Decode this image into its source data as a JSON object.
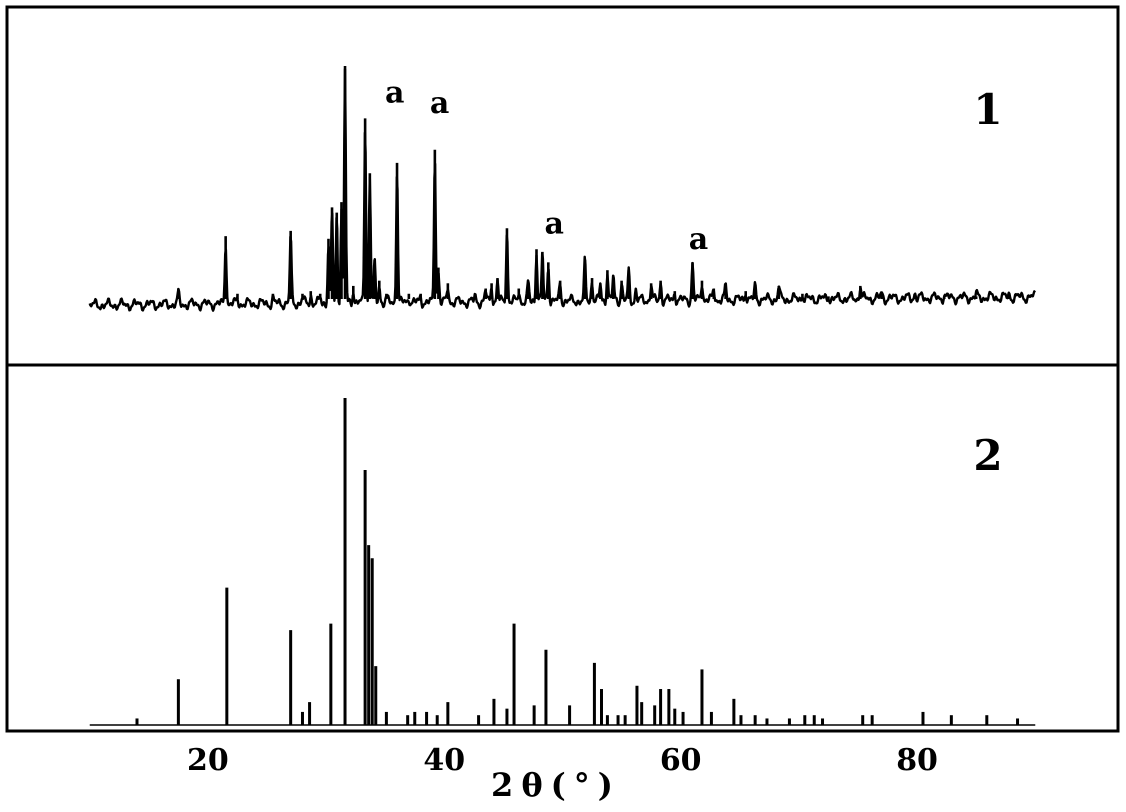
{
  "chart_data": {
    "type": "line",
    "xlabel": "2θ(°)",
    "xlim": [
      3,
      97
    ],
    "xticks": [
      20,
      40,
      60,
      80
    ],
    "grid": false,
    "panels": [
      {
        "label": "1",
        "kind": "measured-pattern",
        "ylim": [
          0,
          100
        ],
        "baseline": 3,
        "peaks": [
          {
            "x": 14.0,
            "y": 3
          },
          {
            "x": 17.5,
            "y": 7
          },
          {
            "x": 21.5,
            "y": 27
          },
          {
            "x": 22.5,
            "y": 5
          },
          {
            "x": 25.5,
            "y": 5
          },
          {
            "x": 27.0,
            "y": 29
          },
          {
            "x": 28.0,
            "y": 5
          },
          {
            "x": 28.7,
            "y": 6
          },
          {
            "x": 29.5,
            "y": 5
          },
          {
            "x": 30.2,
            "y": 26
          },
          {
            "x": 30.5,
            "y": 38
          },
          {
            "x": 30.9,
            "y": 36
          },
          {
            "x": 31.3,
            "y": 40
          },
          {
            "x": 31.6,
            "y": 92
          },
          {
            "x": 32.3,
            "y": 8
          },
          {
            "x": 33.3,
            "y": 72
          },
          {
            "x": 33.7,
            "y": 51
          },
          {
            "x": 34.1,
            "y": 18
          },
          {
            "x": 34.5,
            "y": 10
          },
          {
            "x": 35.1,
            "y": 5
          },
          {
            "x": 36.0,
            "y": 55
          },
          {
            "x": 37.0,
            "y": 5
          },
          {
            "x": 38.0,
            "y": 5
          },
          {
            "x": 39.2,
            "y": 60
          },
          {
            "x": 39.5,
            "y": 15
          },
          {
            "x": 40.3,
            "y": 9
          },
          {
            "x": 42.6,
            "y": 5
          },
          {
            "x": 43.5,
            "y": 7
          },
          {
            "x": 44.0,
            "y": 9
          },
          {
            "x": 44.5,
            "y": 11
          },
          {
            "x": 45.3,
            "y": 30
          },
          {
            "x": 46.3,
            "y": 7
          },
          {
            "x": 47.1,
            "y": 10
          },
          {
            "x": 47.8,
            "y": 22
          },
          {
            "x": 48.3,
            "y": 21
          },
          {
            "x": 48.8,
            "y": 17
          },
          {
            "x": 49.8,
            "y": 10
          },
          {
            "x": 51.9,
            "y": 18
          },
          {
            "x": 52.5,
            "y": 11
          },
          {
            "x": 53.2,
            "y": 9
          },
          {
            "x": 53.8,
            "y": 14
          },
          {
            "x": 54.3,
            "y": 12
          },
          {
            "x": 55.0,
            "y": 10
          },
          {
            "x": 55.6,
            "y": 14
          },
          {
            "x": 56.2,
            "y": 7
          },
          {
            "x": 57.5,
            "y": 9
          },
          {
            "x": 58.3,
            "y": 10
          },
          {
            "x": 59.5,
            "y": 6
          },
          {
            "x": 61.0,
            "y": 17
          },
          {
            "x": 61.8,
            "y": 10
          },
          {
            "x": 62.8,
            "y": 7
          },
          {
            "x": 63.8,
            "y": 8
          },
          {
            "x": 65.5,
            "y": 6
          },
          {
            "x": 66.3,
            "y": 8
          },
          {
            "x": 68.3,
            "y": 8
          },
          {
            "x": 70.3,
            "y": 5
          },
          {
            "x": 72.5,
            "y": 4
          },
          {
            "x": 75.2,
            "y": 8
          },
          {
            "x": 77.0,
            "y": 5
          },
          {
            "x": 79.8,
            "y": 5
          },
          {
            "x": 82.3,
            "y": 4
          },
          {
            "x": 85.0,
            "y": 4
          },
          {
            "x": 87.8,
            "y": 4
          }
        ],
        "annotations": [
          {
            "text": "a",
            "x": 35.8,
            "y": 78
          },
          {
            "text": "a",
            "x": 39.6,
            "y": 74
          },
          {
            "text": "a",
            "x": 49.3,
            "y": 28
          },
          {
            "text": "a",
            "x": 61.5,
            "y": 22
          }
        ]
      },
      {
        "label": "2",
        "kind": "reference-stick-pattern",
        "ylim": [
          0,
          100
        ],
        "baseline": 0,
        "peaks": [
          {
            "x": 14.0,
            "y": 2
          },
          {
            "x": 17.5,
            "y": 14
          },
          {
            "x": 21.6,
            "y": 42
          },
          {
            "x": 27.0,
            "y": 29
          },
          {
            "x": 28.0,
            "y": 4
          },
          {
            "x": 28.6,
            "y": 7
          },
          {
            "x": 30.4,
            "y": 31
          },
          {
            "x": 31.6,
            "y": 100
          },
          {
            "x": 33.3,
            "y": 78
          },
          {
            "x": 33.6,
            "y": 55
          },
          {
            "x": 33.9,
            "y": 51
          },
          {
            "x": 34.2,
            "y": 18
          },
          {
            "x": 35.1,
            "y": 4
          },
          {
            "x": 36.9,
            "y": 3
          },
          {
            "x": 37.5,
            "y": 4
          },
          {
            "x": 38.5,
            "y": 4
          },
          {
            "x": 39.4,
            "y": 3
          },
          {
            "x": 40.3,
            "y": 7
          },
          {
            "x": 42.9,
            "y": 3
          },
          {
            "x": 44.2,
            "y": 8
          },
          {
            "x": 45.3,
            "y": 5
          },
          {
            "x": 45.9,
            "y": 31
          },
          {
            "x": 47.6,
            "y": 6
          },
          {
            "x": 48.6,
            "y": 23
          },
          {
            "x": 50.6,
            "y": 6
          },
          {
            "x": 52.7,
            "y": 19
          },
          {
            "x": 53.3,
            "y": 11
          },
          {
            "x": 53.8,
            "y": 3
          },
          {
            "x": 54.7,
            "y": 3
          },
          {
            "x": 55.3,
            "y": 3
          },
          {
            "x": 56.3,
            "y": 12
          },
          {
            "x": 56.7,
            "y": 7
          },
          {
            "x": 57.8,
            "y": 6
          },
          {
            "x": 58.3,
            "y": 11
          },
          {
            "x": 59.0,
            "y": 11
          },
          {
            "x": 59.5,
            "y": 5
          },
          {
            "x": 60.2,
            "y": 4
          },
          {
            "x": 61.8,
            "y": 17
          },
          {
            "x": 62.6,
            "y": 4
          },
          {
            "x": 64.5,
            "y": 8
          },
          {
            "x": 65.1,
            "y": 3
          },
          {
            "x": 66.3,
            "y": 3
          },
          {
            "x": 67.3,
            "y": 2
          },
          {
            "x": 69.2,
            "y": 2
          },
          {
            "x": 70.5,
            "y": 3
          },
          {
            "x": 71.3,
            "y": 3
          },
          {
            "x": 72.0,
            "y": 2
          },
          {
            "x": 75.4,
            "y": 3
          },
          {
            "x": 76.2,
            "y": 3
          },
          {
            "x": 80.5,
            "y": 4
          },
          {
            "x": 82.9,
            "y": 3
          },
          {
            "x": 85.9,
            "y": 3
          },
          {
            "x": 88.5,
            "y": 2
          }
        ]
      }
    ]
  }
}
